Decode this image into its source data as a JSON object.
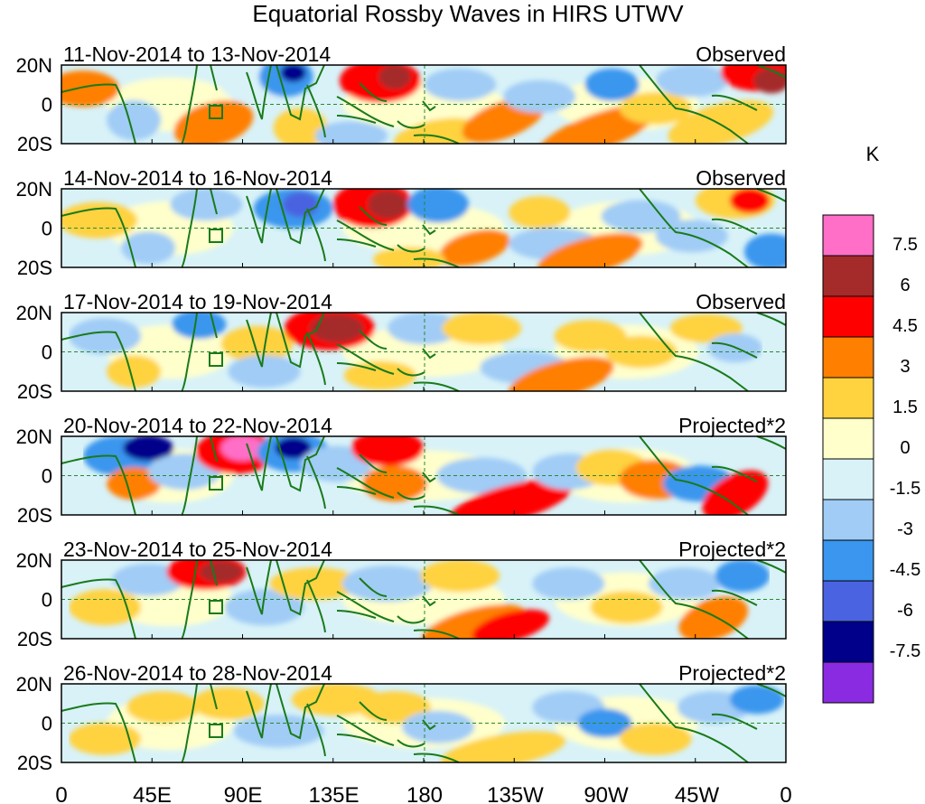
{
  "title": "Equatorial Rossby Waves in HIRS UTWV",
  "panels": [
    {
      "date_range": "11-Nov-2014 to 13-Nov-2014",
      "label": "Observed"
    },
    {
      "date_range": "14-Nov-2014 to 16-Nov-2014",
      "label": "Observed"
    },
    {
      "date_range": "17-Nov-2014 to 19-Nov-2014",
      "label": "Observed"
    },
    {
      "date_range": "20-Nov-2014 to 22-Nov-2014",
      "label": "Projected*2"
    },
    {
      "date_range": "23-Nov-2014 to 25-Nov-2014",
      "label": "Projected*2"
    },
    {
      "date_range": "26-Nov-2014 to 28-Nov-2014",
      "label": "Projected*2"
    }
  ],
  "lat_labels": [
    "20N",
    "0",
    "20S"
  ],
  "lon_labels": [
    "0",
    "45E",
    "90E",
    "135E",
    "180",
    "135W",
    "90W",
    "45W",
    "0"
  ],
  "colorbar": {
    "unit": "K",
    "tick_labels": [
      "7.5",
      "6",
      "4.5",
      "3",
      "1.5",
      "0",
      "-1.5",
      "-3",
      "-4.5",
      "-6",
      "-7.5"
    ],
    "colors": [
      "#ff6ec7",
      "#a52a2a",
      "#ff0000",
      "#ff7f00",
      "#ffd23f",
      "#ffffcc",
      "#d8f2f8",
      "#a0ccf6",
      "#3a96ee",
      "#4a63e0",
      "#00008b",
      "#8a2be2"
    ]
  },
  "coast_color": "#1a7a1a",
  "grid_color": "#2a8a2a"
}
